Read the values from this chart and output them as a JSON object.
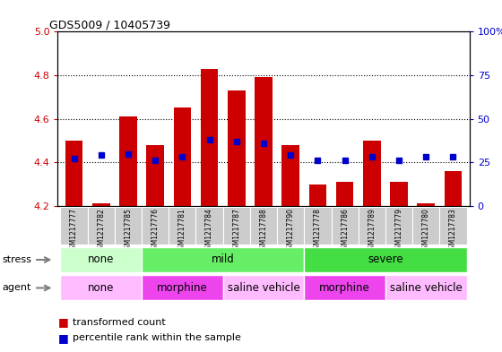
{
  "title": "GDS5009 / 10405739",
  "samples": [
    "GSM1217777",
    "GSM1217782",
    "GSM1217785",
    "GSM1217776",
    "GSM1217781",
    "GSM1217784",
    "GSM1217787",
    "GSM1217788",
    "GSM1217790",
    "GSM1217778",
    "GSM1217786",
    "GSM1217789",
    "GSM1217779",
    "GSM1217780",
    "GSM1217783"
  ],
  "transformed_count": [
    4.5,
    4.21,
    4.61,
    4.48,
    4.65,
    4.83,
    4.73,
    4.79,
    4.48,
    4.3,
    4.31,
    4.5,
    4.31,
    4.21,
    4.36
  ],
  "percentile_rank": [
    27,
    29,
    30,
    26,
    28,
    38,
    37,
    36,
    29,
    26,
    26,
    28,
    26,
    28,
    28
  ],
  "bar_bottom": 4.2,
  "ylim": [
    4.2,
    5.0
  ],
  "y2lim": [
    0,
    100
  ],
  "yticks": [
    4.2,
    4.4,
    4.6,
    4.8,
    5.0
  ],
  "y2ticks": [
    0,
    25,
    50,
    75,
    100
  ],
  "y2ticklabels": [
    "0",
    "25",
    "50",
    "75",
    "100%"
  ],
  "bar_color": "#cc0000",
  "dot_color": "#0000cc",
  "bg_color": "#ffffff",
  "stress_groups": [
    {
      "label": "none",
      "start": 0,
      "end": 3,
      "color": "#ccffcc"
    },
    {
      "label": "mild",
      "start": 3,
      "end": 9,
      "color": "#66ee66"
    },
    {
      "label": "severe",
      "start": 9,
      "end": 15,
      "color": "#44dd44"
    }
  ],
  "agent_groups": [
    {
      "label": "none",
      "start": 0,
      "end": 3,
      "color": "#ffbbff"
    },
    {
      "label": "morphine",
      "start": 3,
      "end": 6,
      "color": "#ee44ee"
    },
    {
      "label": "saline vehicle",
      "start": 6,
      "end": 9,
      "color": "#ffbbff"
    },
    {
      "label": "morphine",
      "start": 9,
      "end": 12,
      "color": "#ee44ee"
    },
    {
      "label": "saline vehicle",
      "start": 12,
      "end": 15,
      "color": "#ffbbff"
    }
  ],
  "left_tick_color": "#cc0000",
  "right_tick_color": "#0000cc",
  "tick_label_bg": "#cccccc"
}
